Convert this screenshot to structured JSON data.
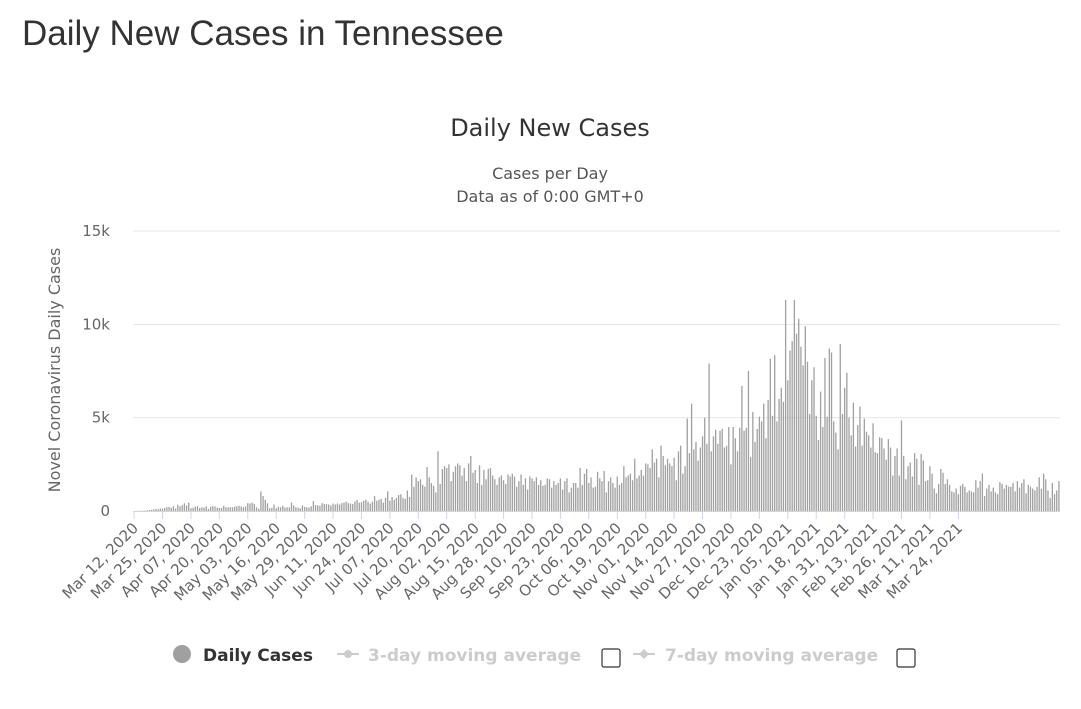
{
  "page": {
    "title": "Daily New Cases in Tennessee"
  },
  "colors": {
    "bar": "#a0a0a0",
    "gridline": "#e6e6e6",
    "axis": "#ccd6eb",
    "legend_inactive": "#cccccc"
  },
  "legend": {
    "items": [
      {
        "label": "Daily Cases",
        "marker": "circle",
        "active": true,
        "checkbox": false
      },
      {
        "label": "3-day moving average",
        "marker": "line-dot",
        "active": false,
        "checkbox": true
      },
      {
        "label": "7-day moving average",
        "marker": "line-diamond",
        "active": false,
        "checkbox": true
      }
    ]
  },
  "chart_data": {
    "type": "bar",
    "title": "Daily New Cases",
    "subtitle_lines": [
      "Cases per Day",
      "Data as of 0:00 GMT+0"
    ],
    "ylabel": "Novel Coronavirus Daily Cases",
    "xlabel": "",
    "ylim": [
      0,
      15000
    ],
    "y_ticks": [
      {
        "value": 0,
        "label": "0"
      },
      {
        "value": 5000,
        "label": "5k"
      },
      {
        "value": 10000,
        "label": "10k"
      },
      {
        "value": 15000,
        "label": "15k"
      }
    ],
    "x_start": "2020-03-12",
    "x_tick_labels": [
      "Mar 12, 2020",
      "Mar 25, 2020",
      "Apr 07, 2020",
      "Apr 20, 2020",
      "May 03, 2020",
      "May 16, 2020",
      "May 29, 2020",
      "Jun 11, 2020",
      "Jun 24, 2020",
      "Jul 07, 2020",
      "Jul 20, 2020",
      "Aug 02, 2020",
      "Aug 15, 2020",
      "Aug 28, 2020",
      "Sep 10, 2020",
      "Sep 23, 2020",
      "Oct 06, 2020",
      "Oct 19, 2020",
      "Nov 01, 2020",
      "Nov 14, 2020",
      "Nov 27, 2020",
      "Dec 10, 2020",
      "Dec 23, 2020",
      "Jan 05, 2021",
      "Jan 18, 2021",
      "Jan 31, 2021",
      "Feb 13, 2021",
      "Feb 26, 2021",
      "Mar 11, 2021",
      "Mar 24, 2021"
    ],
    "grid": true,
    "legend_position": "bottom",
    "series": [
      {
        "name": "Daily Cases",
        "values": [
          0,
          2,
          8,
          10,
          15,
          22,
          30,
          45,
          60,
          90,
          110,
          95,
          140,
          130,
          160,
          210,
          220,
          170,
          260,
          130,
          340,
          250,
          310,
          410,
          300,
          450,
          150,
          180,
          230,
          260,
          160,
          200,
          180,
          250,
          120,
          230,
          260,
          240,
          180,
          160,
          170,
          280,
          200,
          200,
          200,
          200,
          230,
          250,
          280,
          240,
          200,
          250,
          420,
          400,
          450,
          380,
          200,
          120,
          1050,
          800,
          600,
          410,
          150,
          170,
          350,
          150,
          230,
          200,
          280,
          180,
          200,
          200,
          450,
          300,
          200,
          180,
          150,
          300,
          220,
          200,
          180,
          250,
          530,
          320,
          300,
          290,
          420,
          380,
          370,
          350,
          300,
          400,
          350,
          400,
          350,
          420,
          450,
          500,
          420,
          400,
          380,
          500,
          600,
          450,
          480,
          550,
          600,
          500,
          400,
          500,
          800,
          550,
          600,
          650,
          450,
          700,
          1050,
          550,
          750,
          600,
          700,
          850,
          900,
          700,
          650,
          1100,
          750,
          1950,
          1300,
          1800,
          1600,
          1700,
          1400,
          1300,
          2350,
          1800,
          1500,
          1350,
          1000,
          3200,
          1450,
          2250,
          2400,
          2300,
          2500,
          1600,
          2100,
          2400,
          2550,
          2450,
          1900,
          2300,
          1600,
          2550,
          2950,
          2050,
          2200,
          1500,
          2450,
          1400,
          2200,
          1700,
          2250,
          2300,
          1900,
          1700,
          1400,
          1800,
          1900,
          1650,
          1450,
          1950,
          1850,
          2000,
          1850,
          1300,
          1600,
          1950,
          1400,
          1750,
          1150,
          1850,
          1750,
          1600,
          1800,
          1400,
          1650,
          1350,
          1400,
          1750,
          1700,
          1250,
          1600,
          1400,
          1500,
          1750,
          1150,
          1600,
          1750,
          1000,
          1250,
          1500,
          1500,
          1250,
          2300,
          1400,
          2000,
          2250,
          1500,
          1800,
          1250,
          1300,
          2100,
          1750,
          1600,
          2150,
          1000,
          1600,
          1800,
          1500,
          1250,
          1850,
          1400,
          1500,
          2400,
          1800,
          1900,
          2000,
          1650,
          2800,
          1750,
          1900,
          2200,
          1900,
          2550,
          2500,
          2300,
          3300,
          2600,
          2800,
          1800,
          3500,
          2950,
          2450,
          2800,
          2550,
          2400,
          2850,
          1650,
          3200,
          3500,
          2000,
          2400,
          4950,
          3100,
          5750,
          3300,
          3700,
          2700,
          3400,
          4000,
          5000,
          3600,
          7900,
          3200,
          4000,
          4350,
          3600,
          4300,
          4400,
          3400,
          3500,
          4500,
          2500,
          4500,
          3900,
          3200,
          4450,
          6700,
          4300,
          4450,
          7500,
          2900,
          5300,
          3700,
          4400,
          5050,
          4800,
          5750,
          3900,
          5950,
          8150,
          5100,
          8350,
          4800,
          6000,
          6600,
          5850,
          11300,
          7000,
          8600,
          9100,
          11300,
          9500,
          10300,
          8800,
          7800,
          9900,
          8000,
          5200,
          7000,
          7700,
          5100,
          3800,
          6400,
          4500,
          8200,
          5050,
          8700,
          8500,
          4800,
          4200,
          3300,
          8950,
          5200,
          6600,
          7400,
          5000,
          4050,
          5800,
          3450,
          4600,
          5600,
          3500,
          4950,
          4250,
          4050,
          3400,
          4700,
          3150,
          3100,
          3950,
          3900,
          3350,
          2750,
          3850,
          3400,
          1900,
          2950,
          3350,
          1900,
          4850,
          2950,
          1700,
          2400,
          2600,
          1850,
          3100,
          2800,
          1400,
          3050,
          2700,
          1600,
          1650,
          2400,
          2000,
          1200,
          950,
          1450,
          2250,
          2050,
          1450,
          1700,
          1400,
          1050,
          1000,
          1200,
          900,
          1350,
          1450,
          1300,
          1000,
          1100,
          1050,
          1000,
          1650,
          1250,
          1600,
          2000,
          800,
          1200,
          1400,
          1050,
          1250,
          1000,
          900,
          1550,
          1450,
          1200,
          1400,
          1300,
          1300,
          1500,
          1050,
          1600,
          1250,
          1500,
          1700,
          950,
          1400,
          1300,
          1200,
          1100,
          1300,
          1800,
          1200,
          2000,
          1700,
          1100,
          700,
          1500,
          900,
          1100,
          1600
        ]
      }
    ]
  }
}
